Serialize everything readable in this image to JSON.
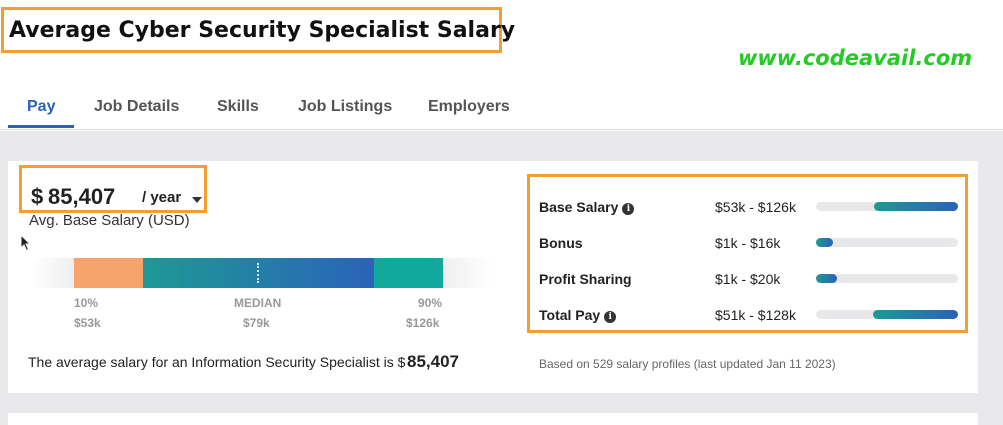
{
  "page_title": "Average Cyber Security Specialist Salary",
  "watermark": "www.codeavail.com",
  "tabs": [
    {
      "label": "Pay",
      "active": true
    },
    {
      "label": "Job Details",
      "active": false
    },
    {
      "label": "Skills",
      "active": false
    },
    {
      "label": "Job Listings",
      "active": false
    },
    {
      "label": "Employers",
      "active": false
    }
  ],
  "salary": {
    "currency_symbol": "$",
    "amount": "85,407",
    "period": "/ year",
    "caption": "Avg. Base Salary (USD)",
    "distribution": {
      "p10": {
        "label": "10%",
        "value": "$53k"
      },
      "median": {
        "label": "MEDIAN",
        "value": "$79k"
      },
      "p90": {
        "label": "90%",
        "value": "$126k"
      }
    },
    "sentence": "The average salary for an Information Security Specialist is $",
    "sentence_value": "85,407"
  },
  "ranges": [
    {
      "label": "Base Salary",
      "info": true,
      "range": "$53k - $126k",
      "start": 0.41,
      "end": 1.0
    },
    {
      "label": "Bonus",
      "info": false,
      "range": "$1k - $16k",
      "start": 0.0,
      "end": 0.12
    },
    {
      "label": "Profit Sharing",
      "info": false,
      "range": "$1k - $20k",
      "start": 0.0,
      "end": 0.15
    },
    {
      "label": "Total Pay",
      "info": true,
      "range": "$51k - $128k",
      "start": 0.4,
      "end": 1.0
    }
  ],
  "footnote": "Based on 529 salary profiles (last updated Jan 11 2023)",
  "colors": {
    "accent": "#2a62b8",
    "highlight_border": "#f0a030",
    "watermark": "#22cc22",
    "low_segment": "#f5a56c",
    "high_segment": "#12a89c"
  },
  "icons": [
    "info-icon",
    "chevron-down-icon",
    "mouse-cursor-icon"
  ]
}
